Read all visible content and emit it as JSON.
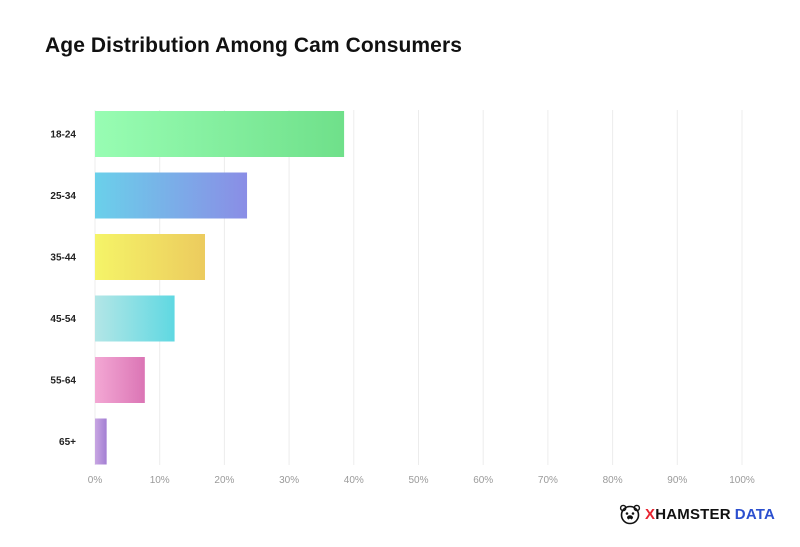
{
  "title": "Age Distribution Among Cam Consumers",
  "brand": {
    "logo_icon": "hamster-face-icon",
    "x_letter": "X",
    "name": "HAMSTER",
    "suffix": "DATA",
    "colors": {
      "x": "#e8232f",
      "name": "#111111",
      "suffix": "#2b4fcf"
    }
  },
  "chart_data": {
    "type": "bar",
    "orientation": "horizontal",
    "title": "Age Distribution Among Cam Consumers",
    "categories": [
      "18-24",
      "25-34",
      "35-44",
      "45-54",
      "55-64",
      "65+"
    ],
    "values": [
      38.5,
      23.5,
      17,
      12.3,
      7.7,
      1.8
    ],
    "xlim": [
      0,
      100
    ],
    "x_ticks": [
      "0%",
      "10%",
      "20%",
      "30%",
      "40%",
      "50%",
      "60%",
      "70%",
      "80%",
      "90%",
      "100%"
    ],
    "grid": "vertical",
    "bar_gradients": [
      [
        "#98fdb3",
        "#6fe08a"
      ],
      [
        "#6ad0ea",
        "#8a8de6"
      ],
      [
        "#f5f468",
        "#eccb5e"
      ],
      [
        "#b3e6e6",
        "#5fd8e2"
      ],
      [
        "#f3a8d4",
        "#db75b5"
      ],
      [
        "#c8a6e2",
        "#a37fd3"
      ]
    ]
  }
}
